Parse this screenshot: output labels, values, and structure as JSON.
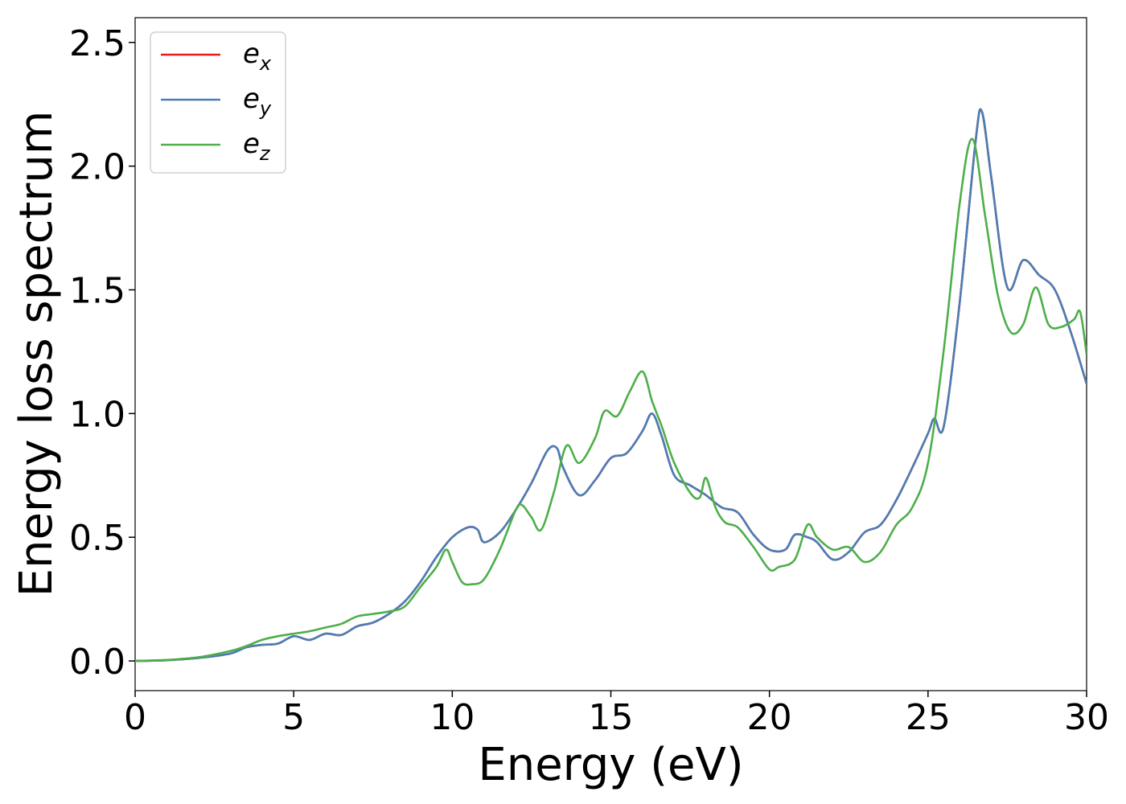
{
  "chart_data": {
    "type": "line",
    "xlabel": "Energy (eV)",
    "ylabel": "Energy loss spectrum",
    "xlim": [
      0,
      30
    ],
    "ylim": [
      -0.12,
      2.6
    ],
    "xticks": [
      0,
      5,
      10,
      15,
      20,
      25,
      30
    ],
    "xtick_labels": [
      "0",
      "5",
      "10",
      "15",
      "20",
      "25",
      "30"
    ],
    "yticks": [
      0.0,
      0.5,
      1.0,
      1.5,
      2.0,
      2.5
    ],
    "ytick_labels": [
      "0.0",
      "0.5",
      "1.0",
      "1.5",
      "2.0",
      "2.5"
    ],
    "grid": false,
    "legend_position": "top-left",
    "series": [
      {
        "name": "e_x",
        "label_base": "e",
        "label_sub": "x",
        "color": "#e41a1c",
        "x": [
          0,
          1,
          2,
          3,
          3.5,
          4,
          4.5,
          5,
          5.5,
          6,
          6.5,
          7,
          7.5,
          8,
          8.5,
          9,
          9.5,
          10,
          10.5,
          10.8,
          11,
          11.5,
          12,
          12.5,
          13,
          13.3,
          13.5,
          14,
          14.5,
          15,
          15.5,
          16,
          16.3,
          16.6,
          17,
          17.5,
          18,
          18.5,
          19,
          19.5,
          20,
          20.5,
          20.8,
          21.2,
          21.5,
          22,
          22.5,
          23,
          23.5,
          24,
          24.5,
          25,
          25.2,
          25.5,
          26,
          26.5,
          26.7,
          27,
          27.5,
          28,
          28.5,
          29,
          29.5,
          30
        ],
        "y": [
          0,
          0.003,
          0.012,
          0.03,
          0.055,
          0.065,
          0.07,
          0.1,
          0.085,
          0.11,
          0.105,
          0.14,
          0.155,
          0.19,
          0.24,
          0.32,
          0.42,
          0.5,
          0.54,
          0.53,
          0.48,
          0.52,
          0.61,
          0.72,
          0.85,
          0.86,
          0.78,
          0.67,
          0.73,
          0.82,
          0.84,
          0.93,
          1.0,
          0.91,
          0.75,
          0.71,
          0.67,
          0.62,
          0.6,
          0.51,
          0.45,
          0.45,
          0.51,
          0.5,
          0.48,
          0.41,
          0.44,
          0.52,
          0.55,
          0.65,
          0.78,
          0.92,
          0.98,
          0.95,
          1.45,
          2.1,
          2.22,
          1.95,
          1.51,
          1.62,
          1.56,
          1.5,
          1.33,
          1.12
        ]
      },
      {
        "name": "e_y",
        "label_base": "e",
        "label_sub": "y",
        "color": "#4a7eb5",
        "x": [
          0,
          1,
          2,
          3,
          3.5,
          4,
          4.5,
          5,
          5.5,
          6,
          6.5,
          7,
          7.5,
          8,
          8.5,
          9,
          9.5,
          10,
          10.5,
          10.8,
          11,
          11.5,
          12,
          12.5,
          13,
          13.3,
          13.5,
          14,
          14.5,
          15,
          15.5,
          16,
          16.3,
          16.6,
          17,
          17.5,
          18,
          18.5,
          19,
          19.5,
          20,
          20.5,
          20.8,
          21.2,
          21.5,
          22,
          22.5,
          23,
          23.5,
          24,
          24.5,
          25,
          25.2,
          25.5,
          26,
          26.5,
          26.7,
          27,
          27.5,
          28,
          28.5,
          29,
          29.5,
          30
        ],
        "y": [
          0,
          0.003,
          0.012,
          0.03,
          0.055,
          0.065,
          0.07,
          0.1,
          0.085,
          0.11,
          0.105,
          0.14,
          0.155,
          0.19,
          0.24,
          0.32,
          0.42,
          0.5,
          0.54,
          0.53,
          0.48,
          0.52,
          0.61,
          0.72,
          0.85,
          0.86,
          0.78,
          0.67,
          0.73,
          0.82,
          0.84,
          0.93,
          1.0,
          0.91,
          0.75,
          0.71,
          0.67,
          0.62,
          0.6,
          0.51,
          0.45,
          0.45,
          0.51,
          0.5,
          0.48,
          0.41,
          0.44,
          0.52,
          0.55,
          0.65,
          0.78,
          0.92,
          0.98,
          0.95,
          1.45,
          2.1,
          2.22,
          1.95,
          1.51,
          1.62,
          1.56,
          1.5,
          1.33,
          1.12
        ]
      },
      {
        "name": "e_z",
        "label_base": "e",
        "label_sub": "z",
        "color": "#4daf4a",
        "x": [
          0,
          1,
          2,
          3,
          3.5,
          4,
          4.5,
          5,
          5.5,
          6,
          6.5,
          7,
          7.5,
          8,
          8.5,
          9,
          9.5,
          9.8,
          10,
          10.3,
          10.6,
          11,
          11.5,
          12,
          12.2,
          12.5,
          12.8,
          13.2,
          13.6,
          14,
          14.5,
          14.8,
          15.2,
          15.6,
          16,
          16.3,
          16.6,
          17,
          17.5,
          17.8,
          18,
          18.3,
          18.6,
          19,
          19.5,
          20,
          20.3,
          20.8,
          21.2,
          21.5,
          22,
          22.5,
          23,
          23.5,
          24,
          24.5,
          25,
          25.5,
          26,
          26.4,
          26.8,
          27.2,
          27.6,
          28,
          28.4,
          28.8,
          29.2,
          29.6,
          29.8,
          30
        ],
        "y": [
          0,
          0.004,
          0.015,
          0.04,
          0.06,
          0.085,
          0.1,
          0.11,
          0.12,
          0.135,
          0.15,
          0.18,
          0.19,
          0.2,
          0.22,
          0.3,
          0.38,
          0.45,
          0.4,
          0.32,
          0.31,
          0.33,
          0.45,
          0.61,
          0.63,
          0.58,
          0.53,
          0.68,
          0.87,
          0.8,
          0.9,
          1.01,
          0.99,
          1.09,
          1.17,
          1.05,
          0.95,
          0.8,
          0.68,
          0.66,
          0.74,
          0.62,
          0.56,
          0.54,
          0.46,
          0.37,
          0.38,
          0.41,
          0.55,
          0.5,
          0.45,
          0.46,
          0.4,
          0.44,
          0.55,
          0.62,
          0.8,
          1.26,
          1.85,
          2.11,
          1.8,
          1.48,
          1.33,
          1.36,
          1.51,
          1.36,
          1.35,
          1.38,
          1.41,
          1.24
        ]
      }
    ]
  }
}
